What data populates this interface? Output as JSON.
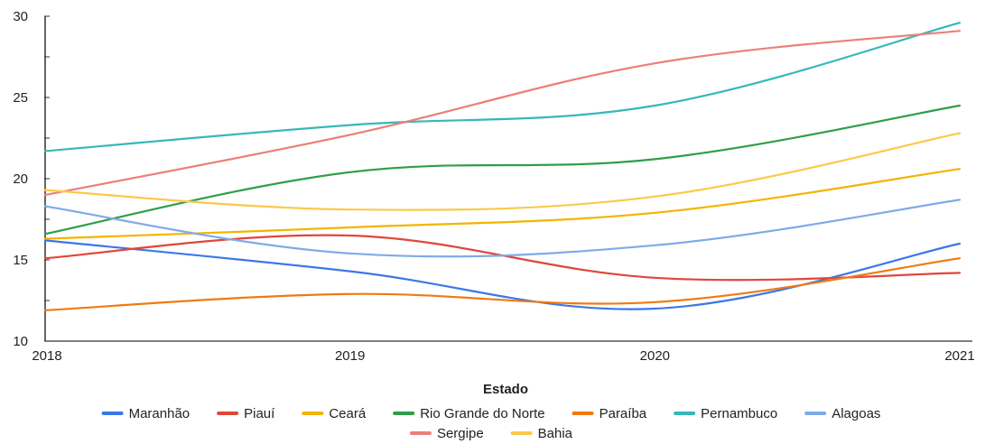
{
  "chart_data": {
    "type": "line",
    "title": "",
    "xlabel": "Estado",
    "ylabel": "",
    "categories": [
      "2018",
      "2019",
      "2020",
      "2021"
    ],
    "ylim": [
      10,
      30
    ],
    "yticks": [
      "10",
      "15",
      "20",
      "25",
      "30"
    ],
    "grid": false,
    "legend_position": "bottom",
    "series": [
      {
        "name": "Maranhão",
        "color": "#3b78e7",
        "values": [
          16.2,
          14.3,
          12.0,
          16.0
        ]
      },
      {
        "name": "Piauí",
        "color": "#e0463a",
        "values": [
          15.1,
          16.5,
          13.9,
          14.2
        ]
      },
      {
        "name": "Ceará",
        "color": "#f4b400",
        "values": [
          16.3,
          17.0,
          17.9,
          20.6
        ]
      },
      {
        "name": "Rio Grande do Norte",
        "color": "#2e9e48",
        "values": [
          16.6,
          20.4,
          21.2,
          24.5
        ]
      },
      {
        "name": "Paraíba",
        "color": "#f07a12",
        "values": [
          11.9,
          12.9,
          12.4,
          15.1
        ]
      },
      {
        "name": "Pernambuco",
        "color": "#36b8b8",
        "values": [
          21.7,
          23.3,
          24.5,
          29.6
        ]
      },
      {
        "name": "Alagoas",
        "color": "#7faae8",
        "values": [
          18.3,
          15.4,
          15.9,
          18.7
        ]
      },
      {
        "name": "Sergipe",
        "color": "#ec7f78",
        "values": [
          19.0,
          22.7,
          27.1,
          29.1
        ]
      },
      {
        "name": "Bahia",
        "color": "#fbc94a",
        "values": [
          19.3,
          18.1,
          18.9,
          22.8
        ]
      }
    ]
  }
}
